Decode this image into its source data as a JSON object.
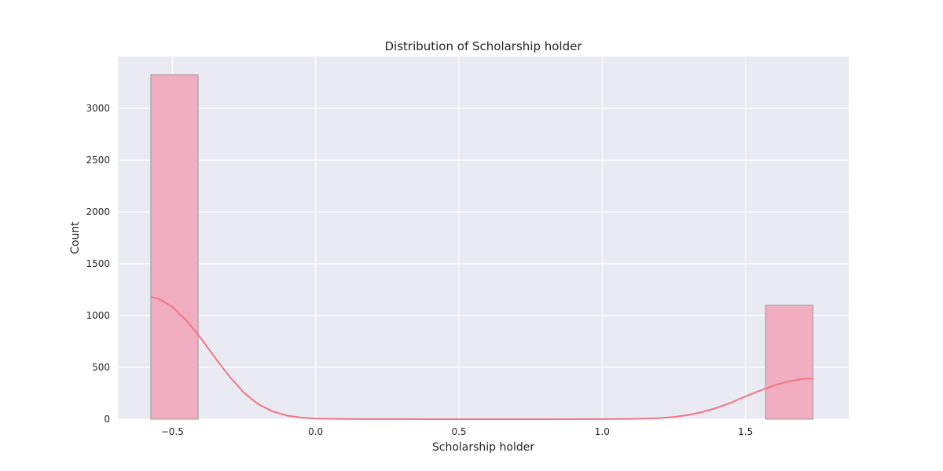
{
  "chart_data": {
    "type": "bar",
    "title": "Distribution of Scholarship holder",
    "xlabel": "Scholarship holder",
    "ylabel": "Count",
    "xlim": [
      -0.69,
      1.86
    ],
    "ylim": [
      0,
      3500
    ],
    "x_ticks": [
      -0.5,
      0.0,
      0.5,
      1.0,
      1.5
    ],
    "x_tick_labels": [
      "−0.5",
      "0.0",
      "0.5",
      "1.0",
      "1.5"
    ],
    "y_ticks": [
      0,
      500,
      1000,
      1500,
      2000,
      2500,
      3000
    ],
    "y_tick_labels": [
      "0",
      "500",
      "1000",
      "1500",
      "2000",
      "2500",
      "3000"
    ],
    "grid": true,
    "bins": [
      {
        "x0": -0.575,
        "x1": -0.41,
        "count": 3325
      },
      {
        "x0": 1.57,
        "x1": 1.735,
        "count": 1100
      }
    ],
    "kde": {
      "x": [
        -0.575,
        -0.55,
        -0.5,
        -0.45,
        -0.4,
        -0.35,
        -0.3,
        -0.25,
        -0.2,
        -0.15,
        -0.1,
        -0.05,
        0.0,
        0.1,
        0.2,
        0.4,
        0.6,
        0.8,
        1.0,
        1.1,
        1.2,
        1.25,
        1.3,
        1.35,
        1.4,
        1.45,
        1.5,
        1.55,
        1.6,
        1.65,
        1.7,
        1.735
      ],
      "y": [
        1180,
        1165,
        1085,
        950,
        780,
        590,
        410,
        255,
        145,
        75,
        35,
        15,
        6,
        2,
        1,
        0,
        0,
        0,
        1,
        3,
        10,
        22,
        40,
        70,
        110,
        160,
        220,
        275,
        325,
        365,
        388,
        392
      ]
    },
    "bar_fill": "#f0aec0",
    "bar_edge": "#999999",
    "kde_color": "#f37486",
    "plot_background": "#eaeaf2",
    "grid_color": "#ffffff"
  }
}
